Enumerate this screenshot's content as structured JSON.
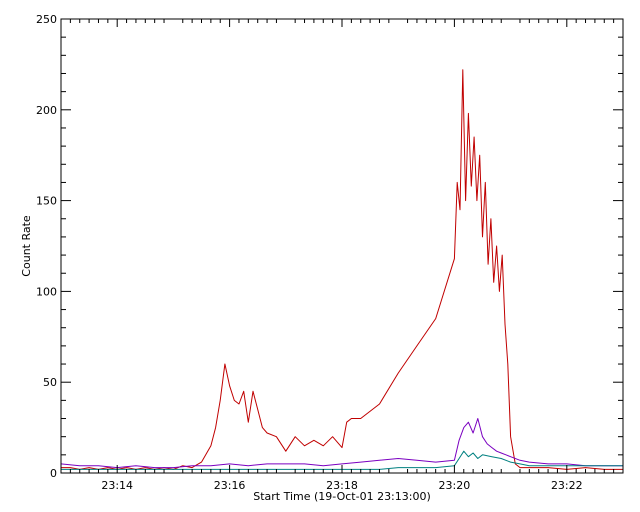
{
  "chart_data": {
    "type": "line",
    "title": "",
    "xlabel": "Start Time (19-Oct-01 23:13:00)",
    "ylabel": "Count Rate",
    "xlim": [
      0,
      600
    ],
    "ylim": [
      0,
      250
    ],
    "x_unit": "seconds after 19-Oct-01 23:13:00",
    "grid": false,
    "legend": "none",
    "x_ticks": [
      {
        "value": 60,
        "label": "23:14"
      },
      {
        "value": 180,
        "label": "23:16"
      },
      {
        "value": 300,
        "label": "23:18"
      },
      {
        "value": 420,
        "label": "23:20"
      },
      {
        "value": 540,
        "label": "23:22"
      }
    ],
    "y_ticks": [
      {
        "value": 0,
        "label": "0"
      },
      {
        "value": 50,
        "label": "50"
      },
      {
        "value": 100,
        "label": "100"
      },
      {
        "value": 150,
        "label": "150"
      },
      {
        "value": 200,
        "label": "200"
      },
      {
        "value": 250,
        "label": "250"
      }
    ],
    "series": [
      {
        "color": "#c00000",
        "x": [
          0,
          10,
          20,
          30,
          40,
          50,
          60,
          70,
          80,
          90,
          100,
          110,
          120,
          130,
          140,
          150,
          160,
          165,
          170,
          175,
          180,
          185,
          190,
          195,
          200,
          205,
          210,
          215,
          220,
          230,
          240,
          250,
          260,
          270,
          280,
          290,
          300,
          305,
          310,
          320,
          340,
          360,
          380,
          400,
          420,
          423,
          426,
          429,
          432,
          435,
          438,
          441,
          444,
          447,
          450,
          453,
          456,
          459,
          462,
          465,
          468,
          471,
          474,
          477,
          480,
          485,
          490,
          500,
          520,
          540,
          560,
          580,
          600
        ],
        "y": [
          3,
          3,
          2,
          3,
          2,
          3,
          2,
          3,
          2,
          3,
          2,
          3,
          2,
          4,
          3,
          6,
          15,
          25,
          40,
          60,
          48,
          40,
          38,
          45,
          28,
          45,
          35,
          25,
          22,
          20,
          12,
          20,
          15,
          18,
          15,
          20,
          14,
          28,
          30,
          30,
          38,
          55,
          70,
          85,
          118,
          160,
          145,
          222,
          150,
          198,
          158,
          185,
          150,
          175,
          130,
          160,
          115,
          140,
          105,
          125,
          100,
          120,
          82,
          60,
          20,
          5,
          3,
          3,
          3,
          2,
          3,
          2,
          2
        ]
      },
      {
        "color": "#7a00c0",
        "x": [
          0,
          20,
          40,
          60,
          80,
          100,
          120,
          140,
          160,
          180,
          200,
          220,
          240,
          260,
          280,
          300,
          320,
          340,
          360,
          380,
          400,
          420,
          425,
          430,
          435,
          440,
          445,
          450,
          455,
          460,
          465,
          470,
          475,
          480,
          490,
          500,
          520,
          540,
          560,
          580,
          600
        ],
        "y": [
          5,
          4,
          4,
          3,
          4,
          3,
          3,
          4,
          4,
          5,
          4,
          5,
          5,
          5,
          4,
          5,
          6,
          7,
          8,
          7,
          6,
          7,
          18,
          25,
          28,
          22,
          30,
          20,
          16,
          14,
          12,
          11,
          10,
          9,
          7,
          6,
          5,
          5,
          4,
          4,
          4
        ]
      },
      {
        "color": "#008080",
        "x": [
          0,
          20,
          40,
          60,
          80,
          100,
          120,
          140,
          160,
          180,
          200,
          220,
          240,
          260,
          280,
          300,
          320,
          340,
          360,
          380,
          400,
          420,
          425,
          430,
          435,
          440,
          445,
          450,
          460,
          470,
          480,
          490,
          500,
          520,
          540,
          560,
          580,
          600
        ],
        "y": [
          2,
          2,
          2,
          2,
          2,
          2,
          2,
          2,
          2,
          2,
          2,
          2,
          2,
          2,
          2,
          2,
          2,
          2,
          3,
          3,
          3,
          4,
          8,
          12,
          9,
          11,
          8,
          10,
          9,
          8,
          6,
          5,
          4,
          4,
          4,
          4,
          4,
          4
        ]
      }
    ]
  }
}
